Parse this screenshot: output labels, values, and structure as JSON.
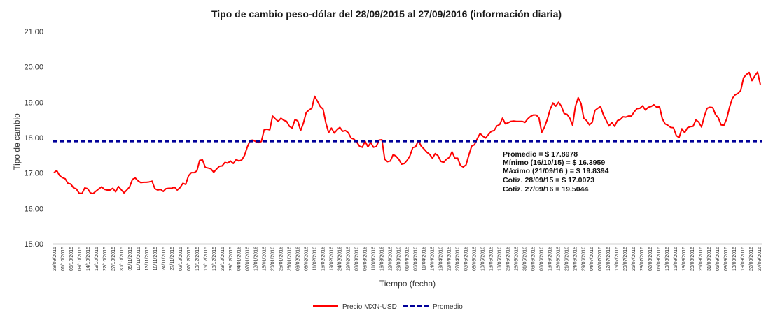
{
  "chart_data": {
    "type": "line",
    "title": "Tipo de cambio peso-dólar del 28/09/2015 al 27/09/2016 (información diaria)",
    "xlabel": "Tiempo (fecha)",
    "ylabel": "Tipo de cambio",
    "ylim": [
      15.0,
      21.0
    ],
    "ytick_labels": [
      "15.00",
      "16.00",
      "17.00",
      "18.00",
      "19.00",
      "20.00",
      "21.00"
    ],
    "grid": false,
    "legend_position": "bottom",
    "colors": {
      "price": "#ff0000",
      "average": "#000099"
    },
    "x_tick_labels": [
      "28/09/2015",
      "01/10/2015",
      "06/10/2015",
      "09/10/2015",
      "14/10/2015",
      "19/10/2015",
      "22/10/2015",
      "27/10/2015",
      "30/10/2015",
      "05/11/2015",
      "10/11/2015",
      "13/11/2015",
      "18/11/2015",
      "24/11/2015",
      "27/11/2015",
      "02/12/2015",
      "07/12/2015",
      "10/12/2015",
      "15/12/2015",
      "18/12/2015",
      "23/12/2015",
      "29/12/2015",
      "04/01/2016",
      "07/01/2016",
      "12/01/2016",
      "15/01/2016",
      "20/01/2016",
      "25/01/2016",
      "28/01/2016",
      "03/02/2016",
      "08/02/2016",
      "11/02/2016",
      "16/02/2016",
      "19/02/2016",
      "24/02/2016",
      "29/02/2016",
      "03/03/2016",
      "08/03/2016",
      "11/03/2016",
      "16/03/2016",
      "22/03/2016",
      "29/03/2016",
      "01/04/2016",
      "06/04/2016",
      "11/04/2016",
      "14/04/2016",
      "19/04/2016",
      "22/04/2016",
      "27/04/2016",
      "02/05/2016",
      "05/05/2016",
      "10/05/2016",
      "13/05/2016",
      "18/05/2016",
      "23/05/2016",
      "26/05/2016",
      "31/05/2016",
      "03/06/2016",
      "08/06/2016",
      "13/06/2016",
      "16/06/2016",
      "21/06/2016",
      "24/06/2016",
      "29/06/2016",
      "04/07/2016",
      "07/07/2016",
      "12/07/2016",
      "15/07/2016",
      "20/07/2016",
      "25/07/2016",
      "28/07/2016",
      "02/08/2016",
      "05/08/2016",
      "10/08/2016",
      "15/08/2016",
      "18/08/2016",
      "23/08/2016",
      "26/08/2016",
      "31/08/2016",
      "05/09/2016",
      "08/09/2016",
      "13/09/2016",
      "19/09/2016",
      "22/09/2016",
      "27/09/2016"
    ],
    "series": [
      {
        "name": "Precio MXN-USD",
        "style": "solid",
        "values": [
          17.01,
          17.07,
          16.93,
          16.87,
          16.84,
          16.71,
          16.69,
          16.58,
          16.55,
          16.43,
          16.42,
          16.58,
          16.56,
          16.44,
          16.42,
          16.49,
          16.55,
          16.61,
          16.54,
          16.52,
          16.52,
          16.57,
          16.47,
          16.62,
          16.53,
          16.44,
          16.52,
          16.61,
          16.82,
          16.86,
          16.78,
          16.73,
          16.74,
          16.74,
          16.75,
          16.77,
          16.56,
          16.52,
          16.54,
          16.48,
          16.56,
          16.57,
          16.57,
          16.6,
          16.52,
          16.59,
          16.71,
          16.68,
          16.92,
          17.01,
          17.01,
          17.06,
          17.36,
          17.37,
          17.16,
          17.14,
          17.12,
          17.02,
          17.11,
          17.19,
          17.2,
          17.3,
          17.28,
          17.34,
          17.27,
          17.38,
          17.34,
          17.37,
          17.5,
          17.74,
          17.92,
          17.93,
          17.89,
          17.86,
          17.89,
          18.22,
          18.24,
          18.22,
          18.61,
          18.53,
          18.46,
          18.55,
          18.49,
          18.46,
          18.32,
          18.27,
          18.51,
          18.47,
          18.2,
          18.41,
          18.71,
          18.78,
          18.83,
          19.17,
          19.03,
          18.88,
          18.81,
          18.42,
          18.14,
          18.27,
          18.13,
          18.22,
          18.29,
          18.18,
          18.2,
          18.14,
          17.99,
          17.96,
          17.88,
          17.76,
          17.73,
          17.9,
          17.74,
          17.86,
          17.73,
          17.75,
          17.93,
          17.94,
          17.39,
          17.32,
          17.34,
          17.52,
          17.48,
          17.39,
          17.25,
          17.27,
          17.36,
          17.49,
          17.72,
          17.74,
          17.92,
          17.76,
          17.68,
          17.59,
          17.53,
          17.42,
          17.55,
          17.49,
          17.33,
          17.3,
          17.39,
          17.44,
          17.6,
          17.42,
          17.42,
          17.21,
          17.17,
          17.23,
          17.51,
          17.76,
          17.8,
          17.97,
          18.12,
          18.04,
          17.99,
          18.09,
          18.18,
          18.2,
          18.33,
          18.37,
          18.55,
          18.39,
          18.42,
          18.46,
          18.47,
          18.46,
          18.46,
          18.46,
          18.43,
          18.53,
          18.6,
          18.64,
          18.64,
          18.56,
          18.15,
          18.3,
          18.52,
          18.8,
          18.98,
          18.89,
          19.0,
          18.89,
          18.68,
          18.66,
          18.55,
          18.35,
          18.88,
          19.13,
          18.97,
          18.55,
          18.48,
          18.36,
          18.43,
          18.77,
          18.83,
          18.88,
          18.64,
          18.49,
          18.33,
          18.43,
          18.32,
          18.48,
          18.51,
          18.59,
          18.58,
          18.61,
          18.61,
          18.73,
          18.82,
          18.83,
          18.9,
          18.78,
          18.86,
          18.88,
          18.93,
          18.86,
          18.88,
          18.54,
          18.39,
          18.35,
          18.29,
          18.28,
          18.06,
          18.0,
          18.25,
          18.14,
          18.28,
          18.31,
          18.32,
          18.5,
          18.44,
          18.3,
          18.6,
          18.83,
          18.86,
          18.85,
          18.65,
          18.56,
          18.36,
          18.35,
          18.53,
          18.86,
          19.11,
          19.21,
          19.25,
          19.33,
          19.69,
          19.78,
          19.84,
          19.61,
          19.74,
          19.85,
          19.5
        ]
      },
      {
        "name": "Promedio",
        "style": "dashed",
        "values": [
          17.8978,
          17.8978
        ]
      }
    ],
    "annotations": {
      "lines": [
        "Promedio = $ 17.8978",
        "Mínimo (16/10/15) = $ 16.3959",
        "Máximo (21/09/16 ) = $ 19.8394",
        "Cotiz. 28/09/15 = $ 17.0073",
        "Cotiz. 27/09/16 = 19.5044"
      ]
    }
  }
}
